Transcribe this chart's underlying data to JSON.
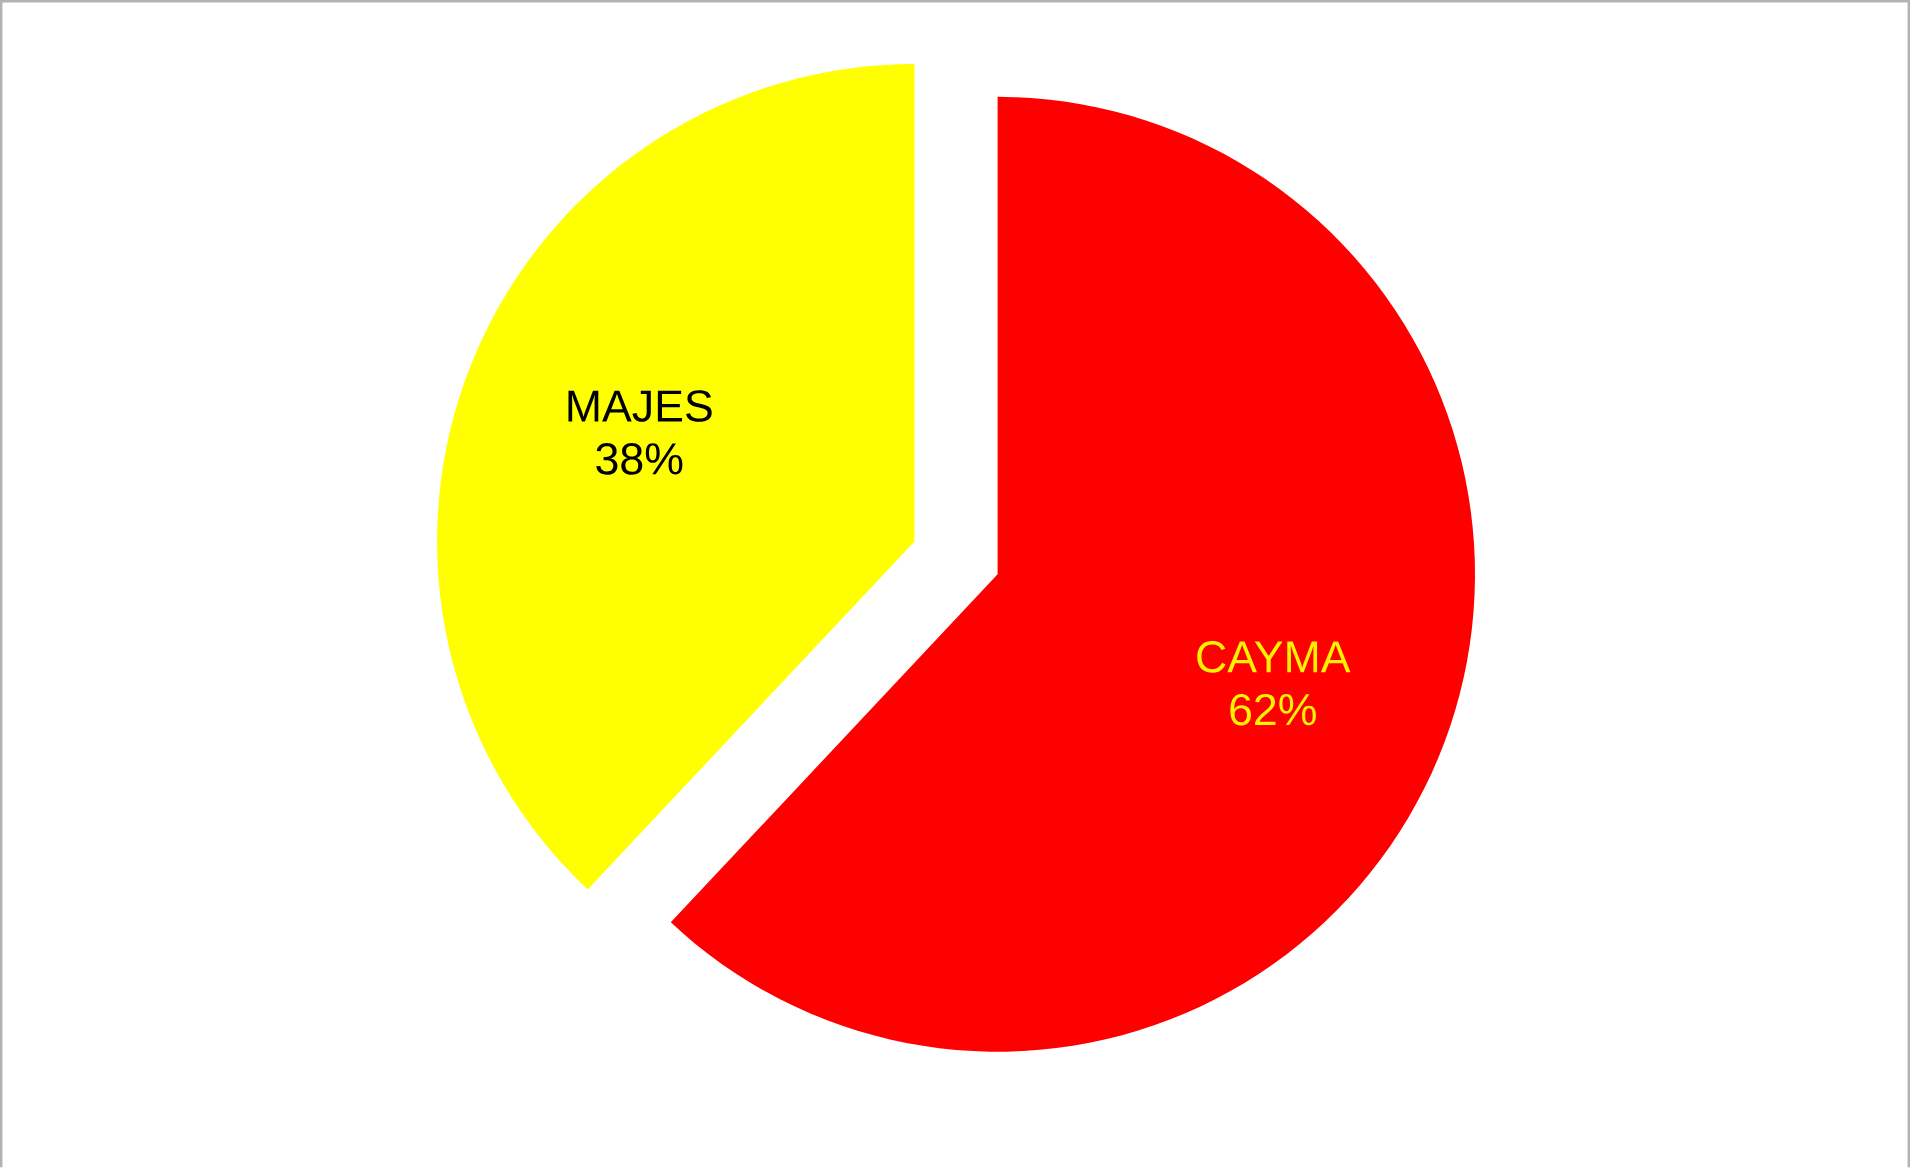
{
  "chart_data": {
    "type": "pie",
    "categories": [
      "CAYMA",
      "MAJES"
    ],
    "values": [
      62,
      38
    ],
    "colors": [
      "#ff0000",
      "#ffff00"
    ],
    "value_labels": [
      "62%",
      "38%"
    ]
  }
}
